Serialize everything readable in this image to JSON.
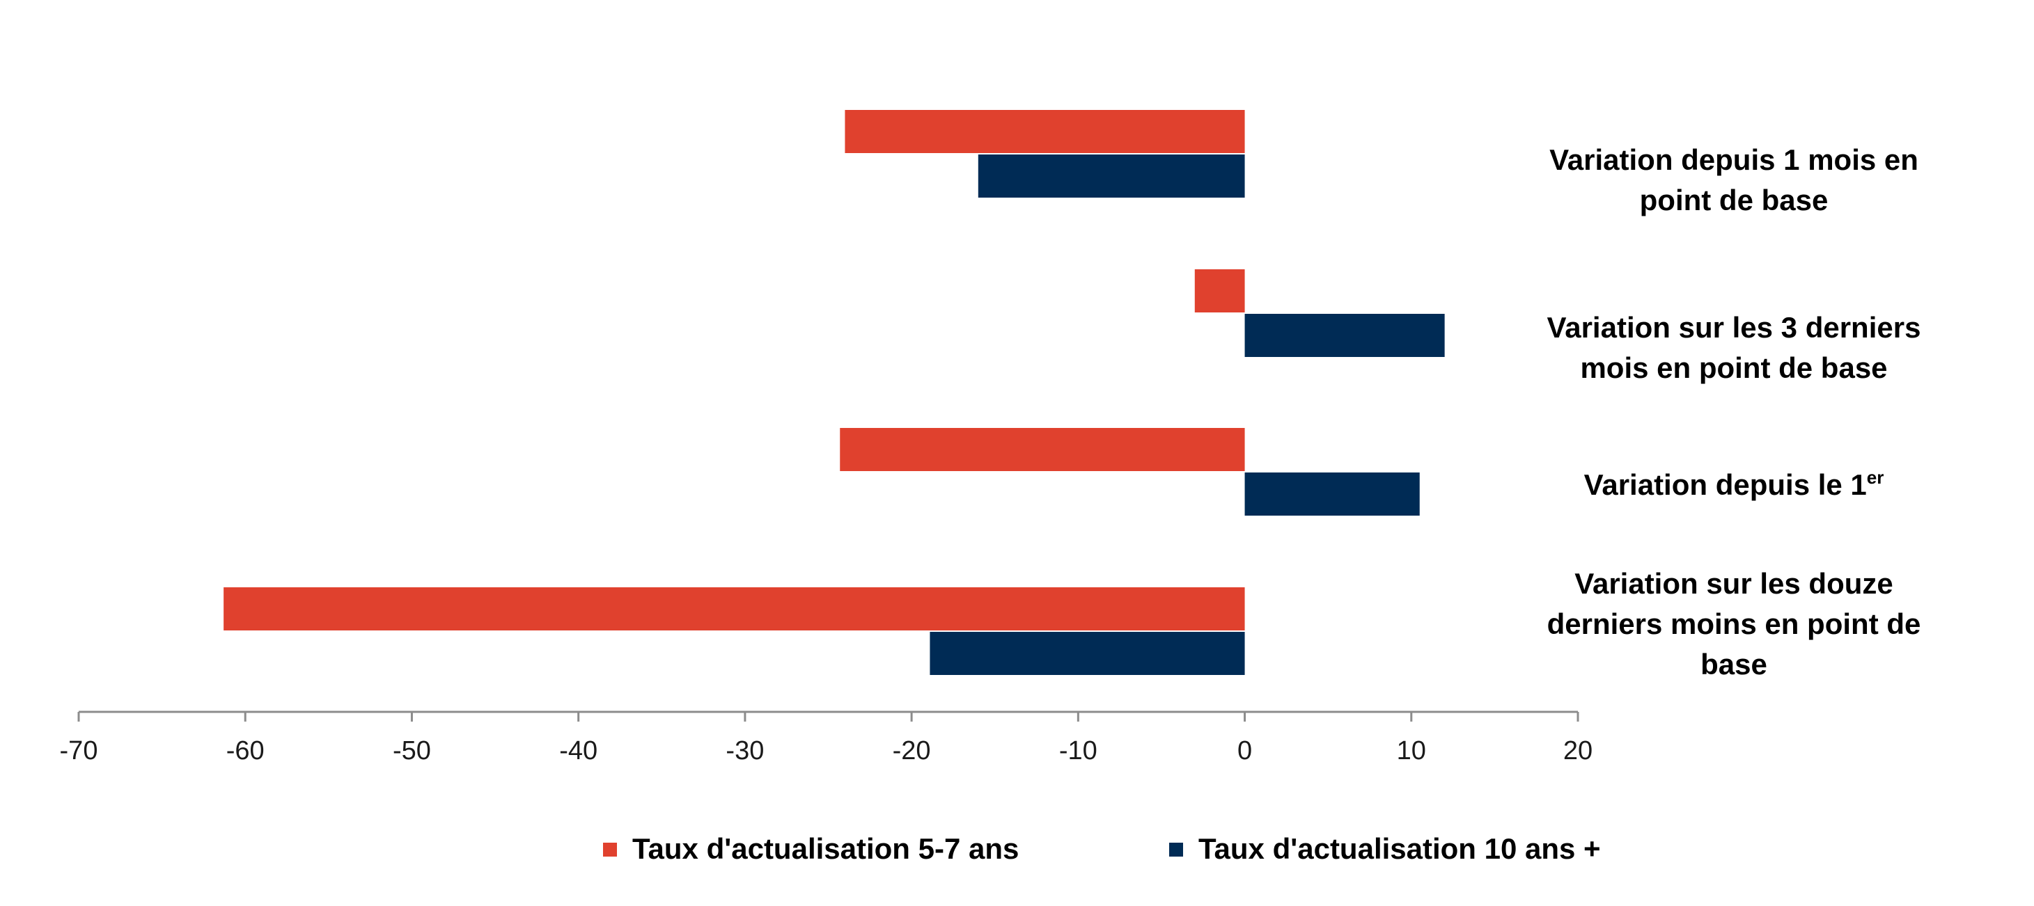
{
  "chart_data": {
    "type": "bar",
    "orientation": "horizontal",
    "title": "",
    "xlabel": "",
    "ylabel": "",
    "xlim": [
      -70,
      20
    ],
    "x_ticks": [
      "-70",
      "-60",
      "-50",
      "-40",
      "-30",
      "-20",
      "-10",
      "0",
      "10",
      "20"
    ],
    "categories": [
      {
        "lines": [
          "Variation depuis 1 mois en",
          "point de base"
        ],
        "superscript": ""
      },
      {
        "lines": [
          "Variation sur les 3 derniers",
          "mois en point de base"
        ],
        "superscript": ""
      },
      {
        "lines": [
          "Variation depuis le 1"
        ],
        "superscript": "er"
      },
      {
        "lines": [
          "Variation sur les douze",
          "derniers moins en point de",
          "base"
        ],
        "superscript": ""
      }
    ],
    "series": [
      {
        "name": "Taux d'actualisation 5-7 ans",
        "color": "#e0412e",
        "values": [
          -24,
          -3,
          -24.3,
          -61.3
        ]
      },
      {
        "name": "Taux d'actualisation 10 ans +",
        "color": "#002b55",
        "values": [
          -16,
          12,
          10.5,
          -18.9
        ]
      }
    ],
    "grid": false,
    "legend_position": "bottom"
  }
}
